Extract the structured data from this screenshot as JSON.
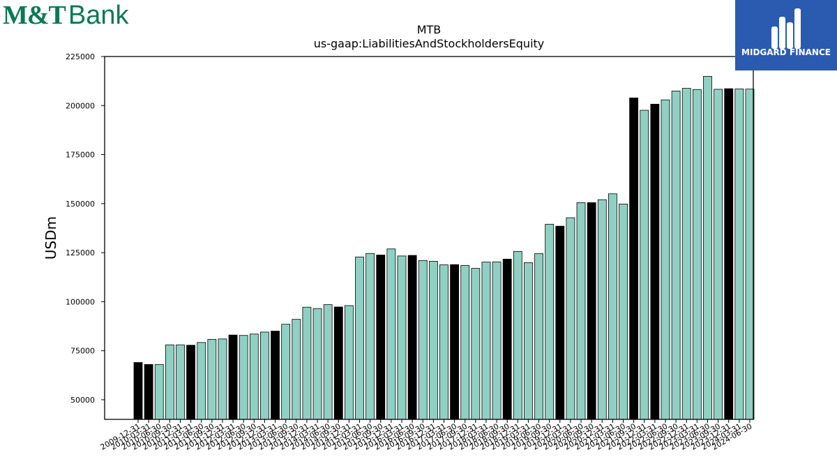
{
  "logos": {
    "left_brand": "M&T",
    "left_word": "Bank",
    "right_brand": "MIDGARD FINANCE"
  },
  "chart_data": {
    "type": "bar",
    "title": "MTB",
    "subtitle": "us-gaap:LiabilitiesAndStockholdersEquity",
    "xlabel": "",
    "ylabel": "USDm",
    "ylim": [
      40000,
      225000
    ],
    "yticks": [
      50000,
      75000,
      100000,
      125000,
      150000,
      175000,
      200000,
      225000
    ],
    "grid": false,
    "legend": "none",
    "colors": {
      "annual": "#000000",
      "quarterly": "#8fd0c3",
      "edge": "#000000"
    },
    "categories": [
      "2009-12-31",
      "2010-03-31",
      "2010-06-30",
      "2010-09-30",
      "2010-12-31",
      "2011-03-31",
      "2011-06-30",
      "2011-09-30",
      "2011-12-31",
      "2012-03-31",
      "2012-06-30",
      "2012-09-30",
      "2012-12-31",
      "2013-03-31",
      "2013-06-30",
      "2013-09-30",
      "2013-12-31",
      "2014-03-31",
      "2014-06-30",
      "2014-09-30",
      "2014-12-31",
      "2015-03-31",
      "2015-06-30",
      "2015-09-30",
      "2015-12-31",
      "2016-03-31",
      "2016-06-30",
      "2016-09-30",
      "2016-12-31",
      "2017-03-31",
      "2017-06-30",
      "2017-09-30",
      "2017-12-31",
      "2018-03-31",
      "2018-06-30",
      "2018-09-30",
      "2018-12-31",
      "2019-03-31",
      "2019-06-30",
      "2019-09-30",
      "2019-12-31",
      "2020-03-31",
      "2020-06-30",
      "2020-09-30",
      "2020-12-31",
      "2021-03-31",
      "2021-06-30",
      "2021-09-30",
      "2021-12-31",
      "2022-03-31",
      "2022-06-30",
      "2022-09-30",
      "2022-12-31",
      "2023-03-31",
      "2023-06-30",
      "2023-09-30",
      "2023-12-31",
      "2024-03-31",
      "2024-06-30"
    ],
    "values": [
      69000,
      68000,
      68000,
      78000,
      78000,
      77800,
      79200,
      80800,
      81000,
      83000,
      82800,
      83500,
      84500,
      85000,
      88500,
      91000,
      97200,
      96500,
      98500,
      97300,
      98000,
      122800,
      124600,
      123800,
      126900,
      123300,
      123600,
      121000,
      120600,
      118800,
      118900,
      118500,
      117000,
      120200,
      120300,
      121700,
      125600,
      119900,
      124500,
      139500,
      138500,
      142800,
      150500,
      150500,
      152000,
      155000,
      149800,
      203900,
      197600,
      200700,
      202900,
      207400,
      208800,
      208200,
      214900,
      208300,
      208600,
      208500,
      208400
    ],
    "annual_flags": [
      1,
      1,
      0,
      0,
      0,
      1,
      0,
      0,
      0,
      1,
      0,
      0,
      0,
      1,
      0,
      0,
      0,
      0,
      0,
      1,
      0,
      0,
      0,
      1,
      0,
      0,
      1,
      0,
      0,
      0,
      1,
      0,
      0,
      0,
      0,
      1,
      0,
      0,
      0,
      0,
      1,
      0,
      0,
      1,
      0,
      0,
      0,
      1,
      0,
      1,
      0,
      0,
      0,
      0,
      0,
      0,
      1,
      0,
      0
    ]
  }
}
